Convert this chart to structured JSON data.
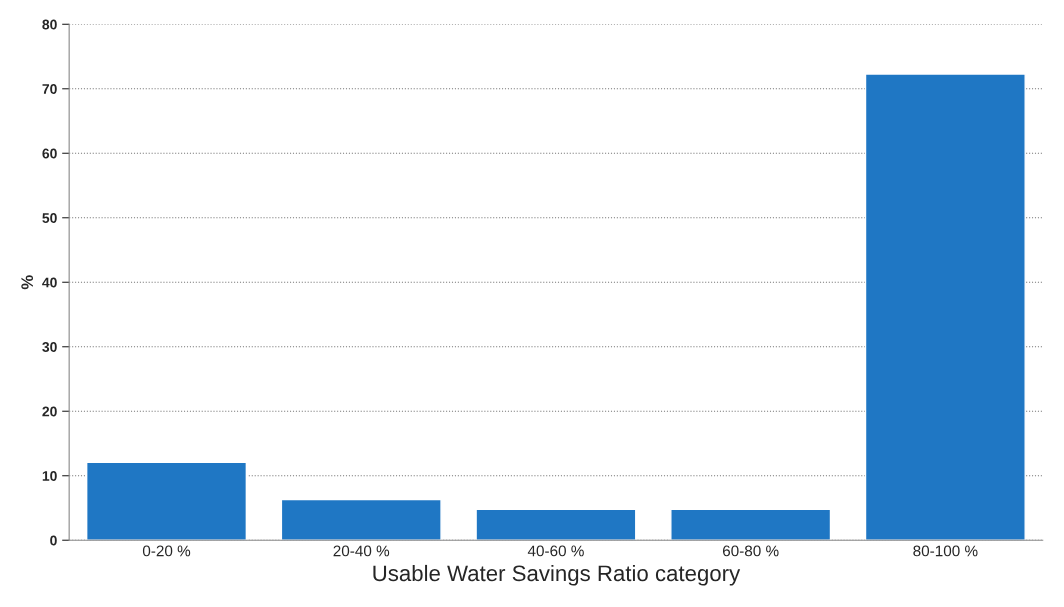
{
  "chart_data": {
    "type": "bar",
    "xlabel": "Usable Water Savings Ratio category",
    "ylabel": "%",
    "categories": [
      "0-20 %",
      "20-40 %",
      "40-60 %",
      "60-80 %",
      "80-100 %"
    ],
    "values": [
      12.1,
      6.3,
      4.8,
      4.8,
      72.3
    ],
    "color": "#1f77c4",
    "ylim": [
      0,
      80
    ],
    "yticks": [
      0,
      10,
      20,
      30,
      40,
      50,
      60,
      70,
      80
    ],
    "grid": "y"
  }
}
